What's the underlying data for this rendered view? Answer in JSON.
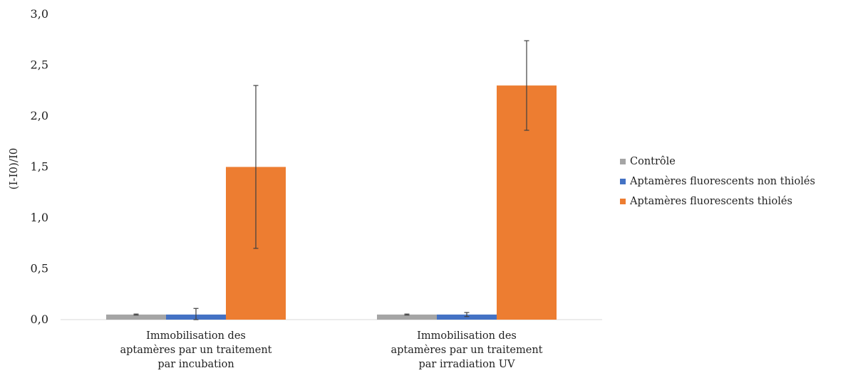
{
  "chart_data": {
    "type": "bar",
    "title": "",
    "xlabel": "",
    "ylabel": "(I-I0)/I0",
    "ylim": [
      0,
      3.0
    ],
    "yticks": [
      "0,0",
      "0,5",
      "1,0",
      "1,5",
      "2,0",
      "2,5",
      "3,0"
    ],
    "grid": false,
    "legend_position": "right",
    "categories": [
      [
        "Immobilisation des",
        "aptamères par un traitement",
        "par incubation"
      ],
      [
        "Immobilisation des",
        "aptamères par un traitement",
        "par irradiation UV"
      ]
    ],
    "series": [
      {
        "name": "Contrôle",
        "color": "#a5a5a5",
        "values": [
          0.05,
          0.05
        ],
        "errors": [
          0.005,
          0.005
        ]
      },
      {
        "name": "Aptamères fluorescents non thiolés",
        "color": "#4472c4",
        "values": [
          0.05,
          0.05
        ],
        "errors": [
          0.06,
          0.02
        ]
      },
      {
        "name": "Aptamères fluorescents thiolés",
        "color": "#ed7d31",
        "values": [
          1.5,
          2.3
        ],
        "errors": [
          0.8,
          0.44
        ]
      }
    ]
  }
}
